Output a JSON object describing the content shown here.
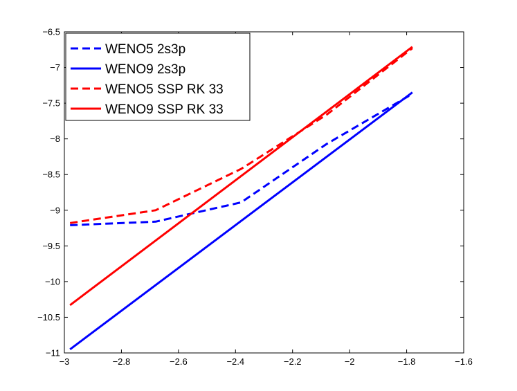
{
  "chart_data": {
    "type": "line",
    "title": "",
    "xlabel": "",
    "ylabel": "",
    "xlim": [
      -3,
      -1.6
    ],
    "ylim": [
      -11,
      -6.5
    ],
    "xticks": [
      -3,
      -2.8,
      -2.6,
      -2.4,
      -2.2,
      -2,
      -1.8,
      -1.6
    ],
    "yticks": [
      -6.5,
      -7,
      -7.5,
      -8,
      -8.5,
      -9,
      -9.5,
      -10,
      -10.5,
      -11
    ],
    "x_tick_labels": [
      "−3",
      "−2.8",
      "−2.6",
      "−2.4",
      "−2.2",
      "−2",
      "−1.8",
      "−1.6"
    ],
    "y_tick_labels": [
      "−6.5",
      "−7",
      "−7.5",
      "−8",
      "−8.5",
      "−9",
      "−9.5",
      "−10",
      "−10.5",
      "−11"
    ],
    "grid": false,
    "legend_position": "top-left",
    "series": [
      {
        "name": "WENO5 2s3p",
        "color": "#0000ff",
        "style": "dashed",
        "x": [
          -2.98,
          -2.68,
          -2.38,
          -2.08,
          -1.78
        ],
        "y": [
          -9.21,
          -9.16,
          -8.89,
          -8.07,
          -7.37
        ]
      },
      {
        "name": "WENO9 2s3p",
        "color": "#0000ff",
        "style": "solid",
        "x": [
          -2.98,
          -1.78
        ],
        "y": [
          -10.95,
          -7.35
        ]
      },
      {
        "name": "WENO5 SSP RK 33",
        "color": "#ff0000",
        "style": "dashed",
        "x": [
          -2.98,
          -2.68,
          -2.38,
          -2.08,
          -1.78
        ],
        "y": [
          -9.18,
          -9.0,
          -8.42,
          -7.66,
          -6.73
        ]
      },
      {
        "name": "WENO9 SSP RK 33",
        "color": "#ff0000",
        "style": "solid",
        "x": [
          -2.98,
          -1.78
        ],
        "y": [
          -10.33,
          -6.71
        ]
      }
    ]
  }
}
